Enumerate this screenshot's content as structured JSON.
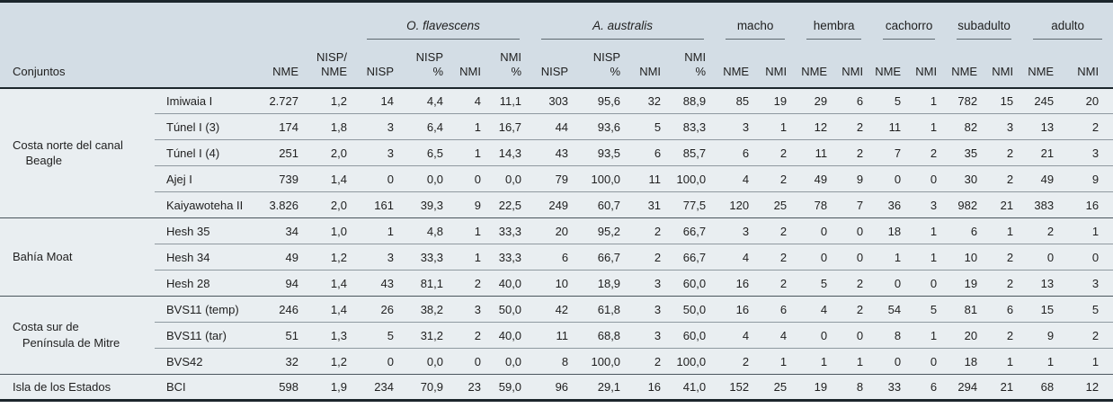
{
  "table": {
    "title_col": "Conjuntos",
    "base_columns": [
      "NME",
      "NISP/\nNME"
    ],
    "span_groups": [
      {
        "label": "O. flavescens",
        "italic": true,
        "columns": [
          "NISP",
          "NISP\n%",
          "NMI",
          "NMI\n%"
        ]
      },
      {
        "label": "A. australis",
        "italic": true,
        "columns": [
          "NISP",
          "NISP\n%",
          "NMI",
          "NMI\n%"
        ]
      },
      {
        "label": "macho",
        "italic": false,
        "columns": [
          "NME",
          "NMI"
        ]
      },
      {
        "label": "hembra",
        "italic": false,
        "columns": [
          "NME",
          "NMI"
        ]
      },
      {
        "label": "cachorro",
        "italic": false,
        "columns": [
          "NME",
          "NMI"
        ]
      },
      {
        "label": "subadulto",
        "italic": false,
        "columns": [
          "NME",
          "NMI"
        ]
      },
      {
        "label": "adulto",
        "italic": false,
        "columns": [
          "NME",
          "NMI"
        ]
      }
    ],
    "groups": [
      {
        "label": "Costa norte del canal\n    Beagle",
        "rows": [
          {
            "site": "Imiwaia I",
            "values": [
              "2.727",
              "1,2",
              "14",
              "4,4",
              "4",
              "11,1",
              "303",
              "95,6",
              "32",
              "88,9",
              "85",
              "19",
              "29",
              "6",
              "5",
              "1",
              "782",
              "15",
              "245",
              "20"
            ]
          },
          {
            "site": "Túnel I (3)",
            "values": [
              "174",
              "1,8",
              "3",
              "6,4",
              "1",
              "16,7",
              "44",
              "93,6",
              "5",
              "83,3",
              "3",
              "1",
              "12",
              "2",
              "11",
              "1",
              "82",
              "3",
              "13",
              "2"
            ]
          },
          {
            "site": "Túnel I (4)",
            "values": [
              "251",
              "2,0",
              "3",
              "6,5",
              "1",
              "14,3",
              "43",
              "93,5",
              "6",
              "85,7",
              "6",
              "2",
              "11",
              "2",
              "7",
              "2",
              "35",
              "2",
              "21",
              "3"
            ]
          },
          {
            "site": "Ajej I",
            "values": [
              "739",
              "1,4",
              "0",
              "0,0",
              "0",
              "0,0",
              "79",
              "100,0",
              "11",
              "100,0",
              "4",
              "2",
              "49",
              "9",
              "0",
              "0",
              "30",
              "2",
              "49",
              "9"
            ]
          },
          {
            "site": "Kaiyawoteha II",
            "values": [
              "3.826",
              "2,0",
              "161",
              "39,3",
              "9",
              "22,5",
              "249",
              "60,7",
              "31",
              "77,5",
              "120",
              "25",
              "78",
              "7",
              "36",
              "3",
              "982",
              "21",
              "383",
              "16"
            ]
          }
        ]
      },
      {
        "label": "Bahía Moat",
        "rows": [
          {
            "site": "Hesh 35",
            "values": [
              "34",
              "1,0",
              "1",
              "4,8",
              "1",
              "33,3",
              "20",
              "95,2",
              "2",
              "66,7",
              "3",
              "2",
              "0",
              "0",
              "18",
              "1",
              "6",
              "1",
              "2",
              "1"
            ]
          },
          {
            "site": "Hesh 34",
            "values": [
              "49",
              "1,2",
              "3",
              "33,3",
              "1",
              "33,3",
              "6",
              "66,7",
              "2",
              "66,7",
              "4",
              "2",
              "0",
              "0",
              "1",
              "1",
              "10",
              "2",
              "0",
              "0"
            ]
          },
          {
            "site": "Hesh 28",
            "values": [
              "94",
              "1,4",
              "43",
              "81,1",
              "2",
              "40,0",
              "10",
              "18,9",
              "3",
              "60,0",
              "16",
              "2",
              "5",
              "2",
              "0",
              "0",
              "19",
              "2",
              "13",
              "3"
            ]
          }
        ]
      },
      {
        "label": "Costa sur de\n   Península de Mitre",
        "rows": [
          {
            "site": "BVS11 (temp)",
            "values": [
              "246",
              "1,4",
              "26",
              "38,2",
              "3",
              "50,0",
              "42",
              "61,8",
              "3",
              "50,0",
              "16",
              "6",
              "4",
              "2",
              "54",
              "5",
              "81",
              "6",
              "15",
              "5"
            ]
          },
          {
            "site": "BVS11 (tar)",
            "values": [
              "51",
              "1,3",
              "5",
              "31,2",
              "2",
              "40,0",
              "11",
              "68,8",
              "3",
              "60,0",
              "4",
              "4",
              "0",
              "0",
              "8",
              "1",
              "20",
              "2",
              "9",
              "2"
            ]
          },
          {
            "site": "BVS42",
            "values": [
              "32",
              "1,2",
              "0",
              "0,0",
              "0",
              "0,0",
              "8",
              "100,0",
              "2",
              "100,0",
              "2",
              "1",
              "1",
              "1",
              "0",
              "0",
              "18",
              "1",
              "1",
              "1"
            ]
          }
        ]
      },
      {
        "label": "Isla de los Estados",
        "rows": [
          {
            "site": "BCI",
            "values": [
              "598",
              "1,9",
              "234",
              "70,9",
              "23",
              "59,0",
              "96",
              "29,1",
              "16",
              "41,0",
              "152",
              "25",
              "19",
              "8",
              "33",
              "6",
              "294",
              "21",
              "68",
              "12"
            ]
          }
        ]
      }
    ],
    "colors": {
      "header_bg": "#d3dde5",
      "body_bg": "#e9eef1",
      "frame": "#1c262c",
      "group_line": "#4a555d",
      "row_line": "#8f99a0",
      "text": "#1f1f1f"
    }
  }
}
